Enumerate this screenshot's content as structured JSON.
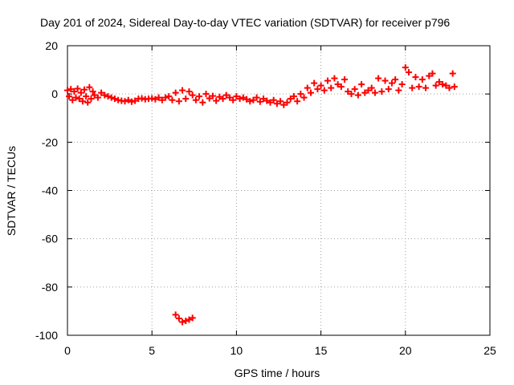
{
  "chart_data": {
    "type": "scatter",
    "title": "Day 201 of 2024, Sidereal Day-to-day VTEC variation (SDTVAR) for receiver p796",
    "xlabel": "GPS time / hours",
    "ylabel": "SDTVAR / TECUs",
    "xlim": [
      0,
      25
    ],
    "ylim": [
      -100,
      20
    ],
    "xticks": [
      0,
      5,
      10,
      15,
      20,
      25
    ],
    "yticks": [
      -100,
      -80,
      -60,
      -40,
      -20,
      0,
      20
    ],
    "grid": true,
    "marker": "+",
    "color": "#ff0000",
    "series": [
      {
        "name": "SDTVAR",
        "points": [
          [
            0.0,
            1.5
          ],
          [
            0.1,
            -1.0
          ],
          [
            0.2,
            2.0
          ],
          [
            0.3,
            -2.5
          ],
          [
            0.4,
            1.0
          ],
          [
            0.5,
            -1.5
          ],
          [
            0.6,
            2.2
          ],
          [
            0.7,
            -2.0
          ],
          [
            0.8,
            0.5
          ],
          [
            0.9,
            -3.0
          ],
          [
            1.0,
            1.8
          ],
          [
            1.1,
            -1.0
          ],
          [
            1.2,
            -3.5
          ],
          [
            1.3,
            2.8
          ],
          [
            1.4,
            -2.0
          ],
          [
            1.5,
            1.0
          ],
          [
            1.6,
            -0.5
          ],
          [
            1.8,
            -1.5
          ],
          [
            2.0,
            0.5
          ],
          [
            2.2,
            -0.5
          ],
          [
            2.4,
            -1.0
          ],
          [
            2.6,
            -1.5
          ],
          [
            2.8,
            -2.0
          ],
          [
            3.0,
            -2.5
          ],
          [
            3.2,
            -2.8
          ],
          [
            3.4,
            -3.0
          ],
          [
            3.6,
            -2.5
          ],
          [
            3.8,
            -3.2
          ],
          [
            4.0,
            -2.8
          ],
          [
            4.2,
            -2.0
          ],
          [
            4.4,
            -1.8
          ],
          [
            4.6,
            -2.2
          ],
          [
            4.8,
            -2.0
          ],
          [
            5.0,
            -1.8
          ],
          [
            5.2,
            -2.2
          ],
          [
            5.4,
            -1.5
          ],
          [
            5.6,
            -2.5
          ],
          [
            5.8,
            -1.5
          ],
          [
            6.0,
            -1.0
          ],
          [
            6.2,
            -2.5
          ],
          [
            6.4,
            0.5
          ],
          [
            6.6,
            -3.0
          ],
          [
            6.8,
            1.5
          ],
          [
            7.0,
            -2.0
          ],
          [
            7.2,
            1.0
          ],
          [
            7.4,
            -0.5
          ],
          [
            7.6,
            -2.5
          ],
          [
            7.8,
            -1.0
          ],
          [
            8.0,
            -3.5
          ],
          [
            8.2,
            0.0
          ],
          [
            8.4,
            -1.8
          ],
          [
            8.6,
            -0.8
          ],
          [
            8.8,
            -2.8
          ],
          [
            9.0,
            -1.2
          ],
          [
            9.2,
            -2.0
          ],
          [
            9.4,
            -0.5
          ],
          [
            9.6,
            -1.5
          ],
          [
            9.8,
            -2.5
          ],
          [
            10.0,
            -1.0
          ],
          [
            10.2,
            -2.0
          ],
          [
            10.4,
            -1.5
          ],
          [
            10.6,
            -2.2
          ],
          [
            10.8,
            -3.0
          ],
          [
            11.0,
            -2.5
          ],
          [
            11.2,
            -1.5
          ],
          [
            11.4,
            -3.2
          ],
          [
            11.6,
            -2.0
          ],
          [
            11.8,
            -2.8
          ],
          [
            12.0,
            -3.5
          ],
          [
            12.2,
            -2.5
          ],
          [
            12.4,
            -4.0
          ],
          [
            12.6,
            -3.0
          ],
          [
            12.8,
            -4.5
          ],
          [
            13.0,
            -3.5
          ],
          [
            13.2,
            -2.0
          ],
          [
            13.4,
            -1.0
          ],
          [
            13.6,
            -3.0
          ],
          [
            13.8,
            0.0
          ],
          [
            14.0,
            -1.5
          ],
          [
            14.2,
            2.5
          ],
          [
            14.4,
            0.5
          ],
          [
            14.6,
            4.5
          ],
          [
            14.8,
            2.0
          ],
          [
            15.0,
            3.5
          ],
          [
            15.2,
            1.5
          ],
          [
            15.4,
            5.5
          ],
          [
            15.6,
            2.5
          ],
          [
            15.8,
            6.5
          ],
          [
            16.0,
            4.0
          ],
          [
            16.2,
            3.0
          ],
          [
            16.4,
            6.0
          ],
          [
            16.6,
            1.0
          ],
          [
            16.8,
            0.0
          ],
          [
            17.0,
            2.0
          ],
          [
            17.2,
            -0.5
          ],
          [
            17.4,
            4.0
          ],
          [
            17.6,
            0.5
          ],
          [
            17.8,
            1.5
          ],
          [
            18.0,
            2.5
          ],
          [
            18.2,
            0.5
          ],
          [
            18.4,
            6.5
          ],
          [
            18.6,
            1.0
          ],
          [
            18.8,
            5.5
          ],
          [
            19.0,
            2.0
          ],
          [
            19.2,
            4.5
          ],
          [
            19.4,
            6.0
          ],
          [
            19.6,
            1.5
          ],
          [
            19.8,
            4.0
          ],
          [
            20.0,
            11.0
          ],
          [
            20.2,
            9.0
          ],
          [
            20.4,
            2.5
          ],
          [
            20.6,
            7.0
          ],
          [
            20.8,
            3.0
          ],
          [
            21.0,
            6.0
          ],
          [
            21.2,
            2.5
          ],
          [
            21.4,
            7.5
          ],
          [
            21.6,
            8.5
          ],
          [
            21.8,
            3.5
          ],
          [
            22.0,
            5.0
          ],
          [
            22.2,
            4.0
          ],
          [
            22.4,
            3.5
          ],
          [
            22.8,
            8.5
          ],
          [
            22.9,
            3.0
          ],
          [
            22.6,
            2.5
          ],
          [
            6.4,
            -91.5
          ],
          [
            6.6,
            -93.0
          ],
          [
            6.8,
            -94.5
          ],
          [
            7.0,
            -94.0
          ],
          [
            7.2,
            -93.5
          ],
          [
            7.4,
            -92.8
          ]
        ]
      }
    ]
  }
}
